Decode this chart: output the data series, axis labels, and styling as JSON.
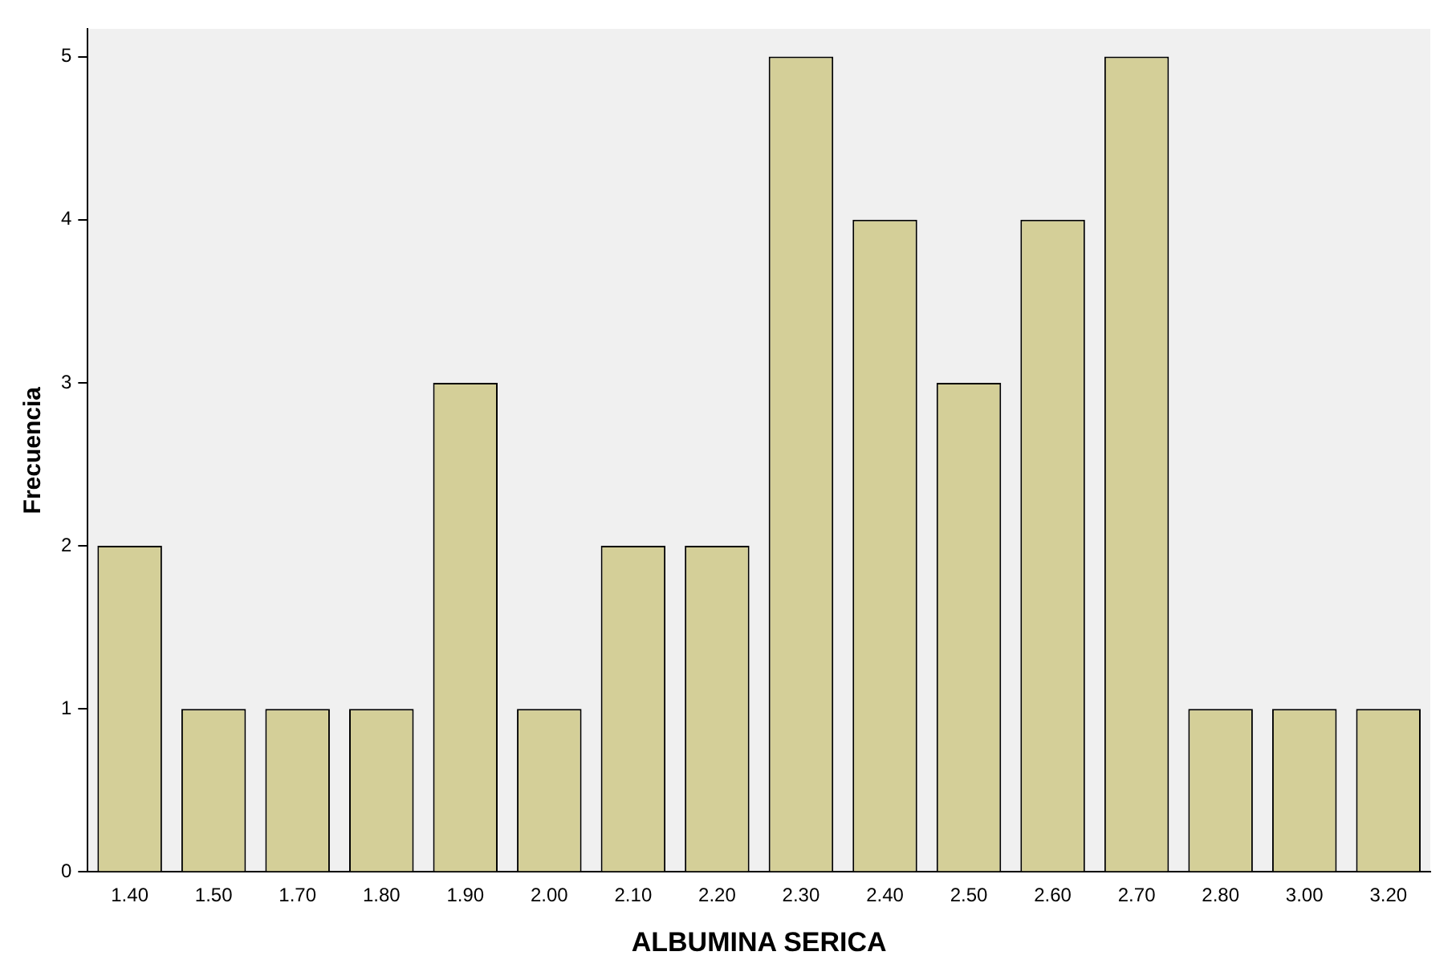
{
  "chart_data": {
    "type": "bar",
    "xlabel": "ALBUMINA SERICA",
    "ylabel": "Frecuencia",
    "categories": [
      "1.40",
      "1.50",
      "1.70",
      "1.80",
      "1.90",
      "2.00",
      "2.10",
      "2.20",
      "2.30",
      "2.40",
      "2.50",
      "2.60",
      "2.70",
      "2.80",
      "3.00",
      "3.20"
    ],
    "values": [
      2,
      1,
      1,
      1,
      3,
      1,
      2,
      2,
      5,
      4,
      3,
      4,
      5,
      1,
      1,
      1
    ],
    "color": "#d4cf98",
    "ylim": [
      0,
      5.17
    ],
    "yticks": [
      0,
      1,
      2,
      3,
      4,
      5
    ],
    "grid": false,
    "legend": false
  }
}
